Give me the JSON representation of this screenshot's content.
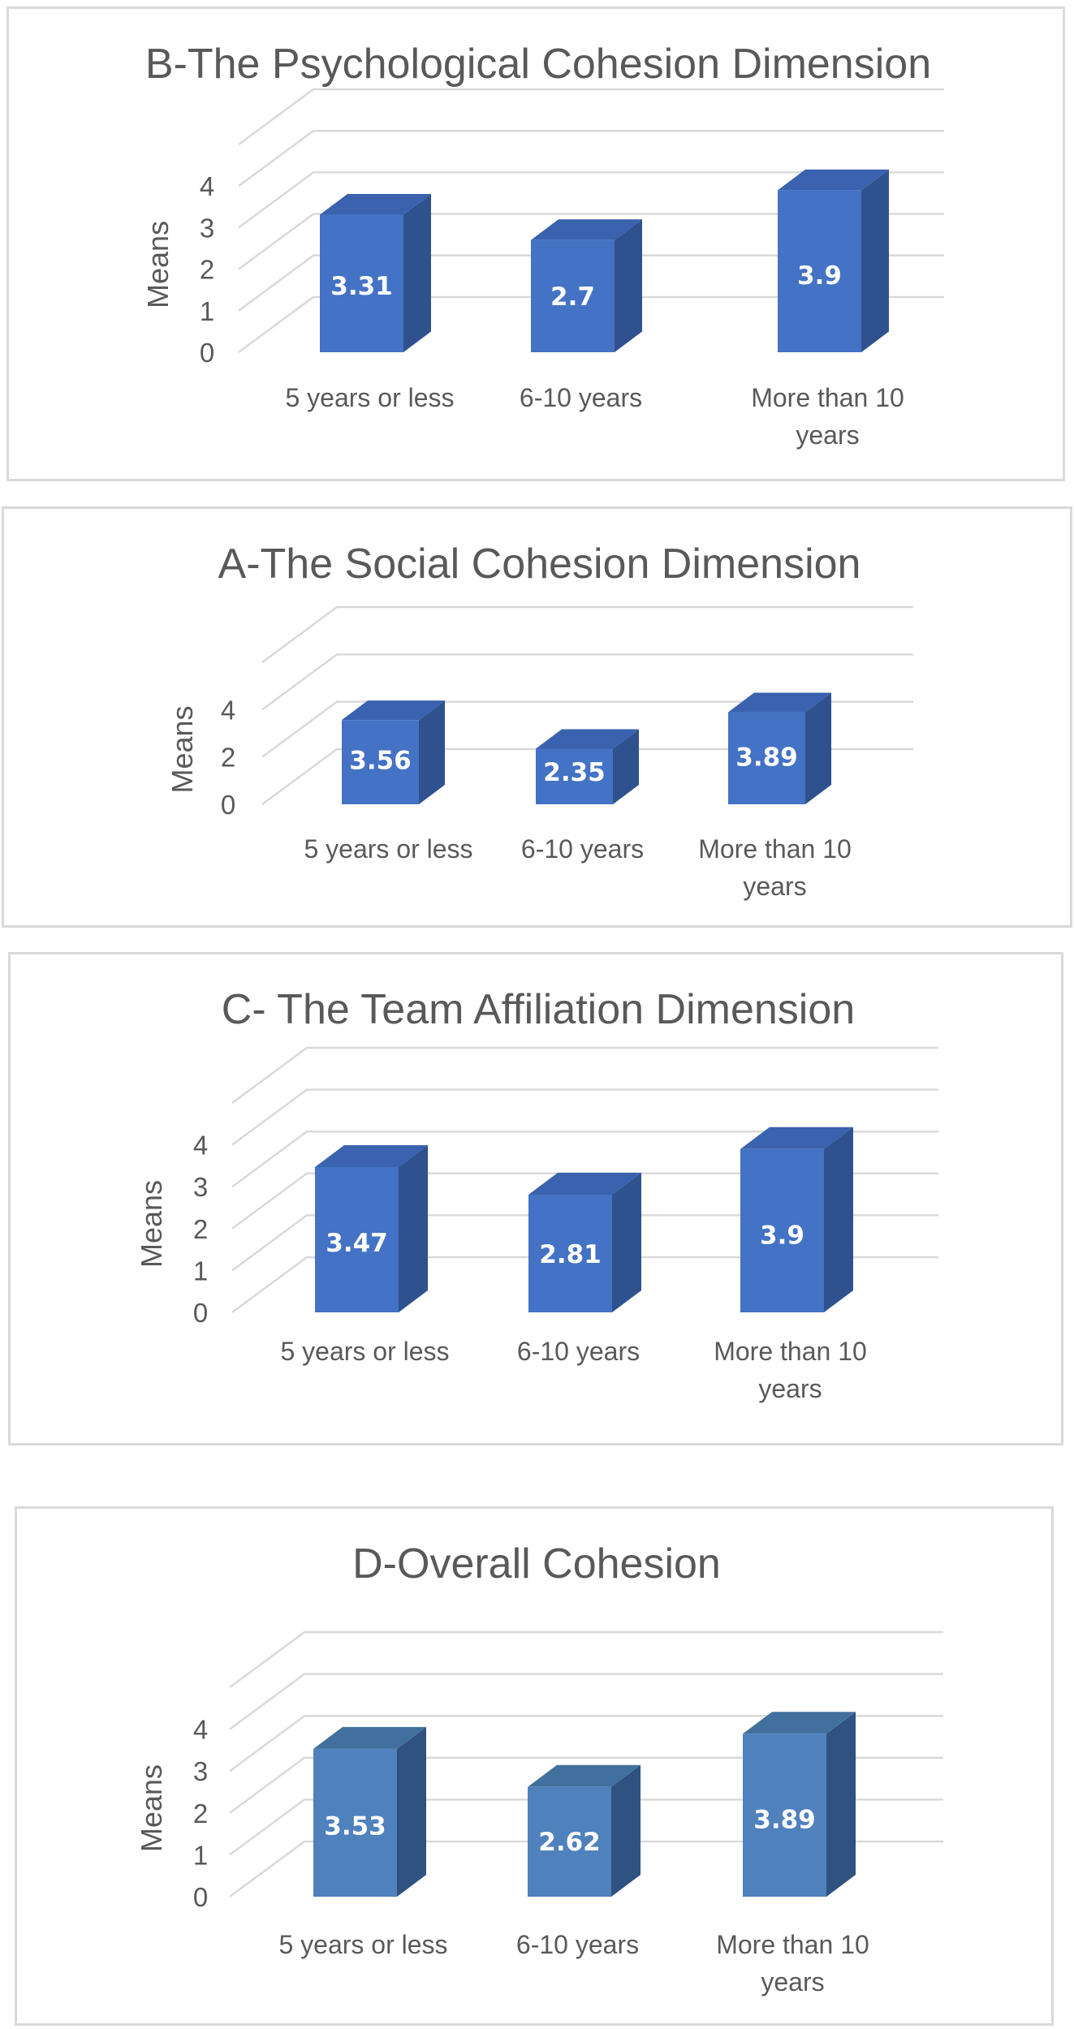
{
  "chart_data": [
    {
      "type": "bar",
      "title": "B-The Psychological Cohesion Dimension",
      "ylabel": "Means",
      "xlabel": "",
      "categories": [
        "5 years or less",
        "6-10 years",
        "More than 10 years"
      ],
      "values": [
        3.31,
        2.7,
        3.9
      ],
      "data_labels": [
        "3.31",
        "2.7",
        "3.9"
      ],
      "yticks": [
        "0",
        "1",
        "2",
        "3",
        "4"
      ],
      "ylim": [
        0,
        5
      ],
      "grid": true,
      "style": "3d",
      "colors": {
        "front": "#4472c4",
        "side": "#2f528f",
        "top": "#3a62ae"
      }
    },
    {
      "type": "bar",
      "title": "A-The Social Cohesion Dimension",
      "ylabel": "Means",
      "xlabel": "",
      "categories": [
        "5 years or less",
        "6-10 years",
        "More than 10 years"
      ],
      "values": [
        3.56,
        2.35,
        3.89
      ],
      "data_labels": [
        "3.56",
        "2.35",
        "3.89"
      ],
      "yticks": [
        "0",
        "2",
        "4"
      ],
      "ylim": [
        0,
        6
      ],
      "grid": true,
      "style": "3d",
      "colors": {
        "front": "#4472c4",
        "side": "#2f528f",
        "top": "#3a62ae"
      }
    },
    {
      "type": "bar",
      "title": "C- The Team Affiliation Dimension",
      "ylabel": "Means",
      "xlabel": "",
      "categories": [
        "5 years or less",
        "6-10 years",
        "More than 10 years"
      ],
      "values": [
        3.47,
        2.81,
        3.9
      ],
      "data_labels": [
        "3.47",
        "2.81",
        "3.9"
      ],
      "yticks": [
        "0",
        "1",
        "2",
        "3",
        "4"
      ],
      "ylim": [
        0,
        5
      ],
      "grid": true,
      "style": "3d",
      "colors": {
        "front": "#4472c4",
        "side": "#2f528f",
        "top": "#3a62ae"
      }
    },
    {
      "type": "bar",
      "title": "D-Overall Cohesion",
      "ylabel": "Means",
      "xlabel": "",
      "categories": [
        "5 years or less",
        "6-10 years",
        "More than 10 years"
      ],
      "values": [
        3.53,
        2.62,
        3.89
      ],
      "data_labels": [
        "3.53",
        "2.62",
        "3.89"
      ],
      "yticks": [
        "0",
        "1",
        "2",
        "3",
        "4"
      ],
      "ylim": [
        0,
        5
      ],
      "grid": true,
      "style": "3d",
      "colors": {
        "front": "#4f81bd",
        "side": "#2f5280",
        "top": "#41709e"
      }
    }
  ]
}
